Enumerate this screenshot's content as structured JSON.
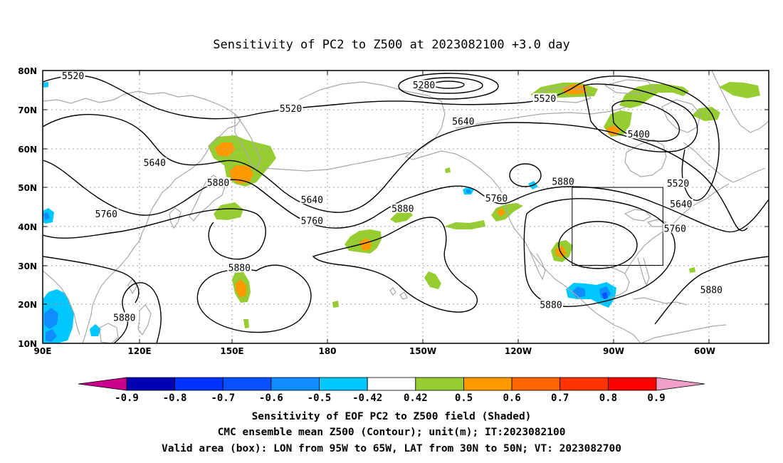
{
  "title": "Sensitivity of PC2 to Z500 at 2023082100 +3.0 day",
  "lat_labels": [
    "80N",
    "70N",
    "60N",
    "50N",
    "40N",
    "30N",
    "20N",
    "10N"
  ],
  "lon_labels": [
    "90E",
    "120E",
    "150E",
    "180",
    "150W",
    "120W",
    "90W",
    "60W"
  ],
  "contour_labels": [
    {
      "text": "5520",
      "lon": 100,
      "lat": 78.7
    },
    {
      "text": "5280",
      "lon": 216,
      "lat": 76.3
    },
    {
      "text": "5520",
      "lon": 256,
      "lat": 72.9
    },
    {
      "text": "5520",
      "lon": 172,
      "lat": 70.3
    },
    {
      "text": "5640",
      "lon": 229,
      "lat": 67.0
    },
    {
      "text": "5400",
      "lon": 287,
      "lat": 63.7
    },
    {
      "text": "5640",
      "lon": 127,
      "lat": 56.4
    },
    {
      "text": "5880",
      "lon": 148,
      "lat": 51.3
    },
    {
      "text": "5520",
      "lon": 300,
      "lat": 51.1
    },
    {
      "text": "5760",
      "lon": 240,
      "lat": 47.3
    },
    {
      "text": "5880",
      "lon": 262,
      "lat": 51.6
    },
    {
      "text": "5640",
      "lon": 179,
      "lat": 46.9
    },
    {
      "text": "5640",
      "lon": 301,
      "lat": 45.8
    },
    {
      "text": "5880",
      "lon": 209,
      "lat": 44.6
    },
    {
      "text": "5760",
      "lon": 111,
      "lat": 43.3
    },
    {
      "text": "5760",
      "lon": 179,
      "lat": 41.5
    },
    {
      "text": "5760",
      "lon": 299,
      "lat": 39.5
    },
    {
      "text": "5880",
      "lon": 155,
      "lat": 29.5
    },
    {
      "text": "5880",
      "lon": 311,
      "lat": 23.8
    },
    {
      "text": "5880",
      "lon": 258,
      "lat": 20.0
    },
    {
      "text": "5880",
      "lon": 117,
      "lat": 16.7
    }
  ],
  "valid_box": {
    "lon_min": -95,
    "lon_max": -65,
    "lat_min": 30,
    "lat_max": 50
  },
  "colorbar": {
    "labels": [
      "-0.9",
      "-0.8",
      "-0.7",
      "-0.6",
      "-0.5",
      "-0.42",
      "0.42",
      "0.5",
      "0.6",
      "0.7",
      "0.8",
      "0.9"
    ],
    "colors": [
      "#0000b4",
      "#0033ff",
      "#0a50ff",
      "#0f8cff",
      "#00c8ff",
      "#ffffff",
      "#96cd32",
      "#ff9900",
      "#ff6600",
      "#ff3300",
      "#ff0000"
    ],
    "low_end_color": "#c8008c",
    "high_end_color": "#f0a0c8"
  },
  "captions": [
    "Sensitivity of EOF PC2 to Z500 field (Shaded)",
    "CMC ensemble mean Z500 (Contour); unit(m); IT:2023082100",
    "Valid area (box): LON from 95W to 65W, LAT from 30N to 50N; VT: 2023082700"
  ],
  "colors": {
    "contour": "#000000",
    "coast": "#a8a8a8",
    "grid": "#a0a0a0"
  }
}
